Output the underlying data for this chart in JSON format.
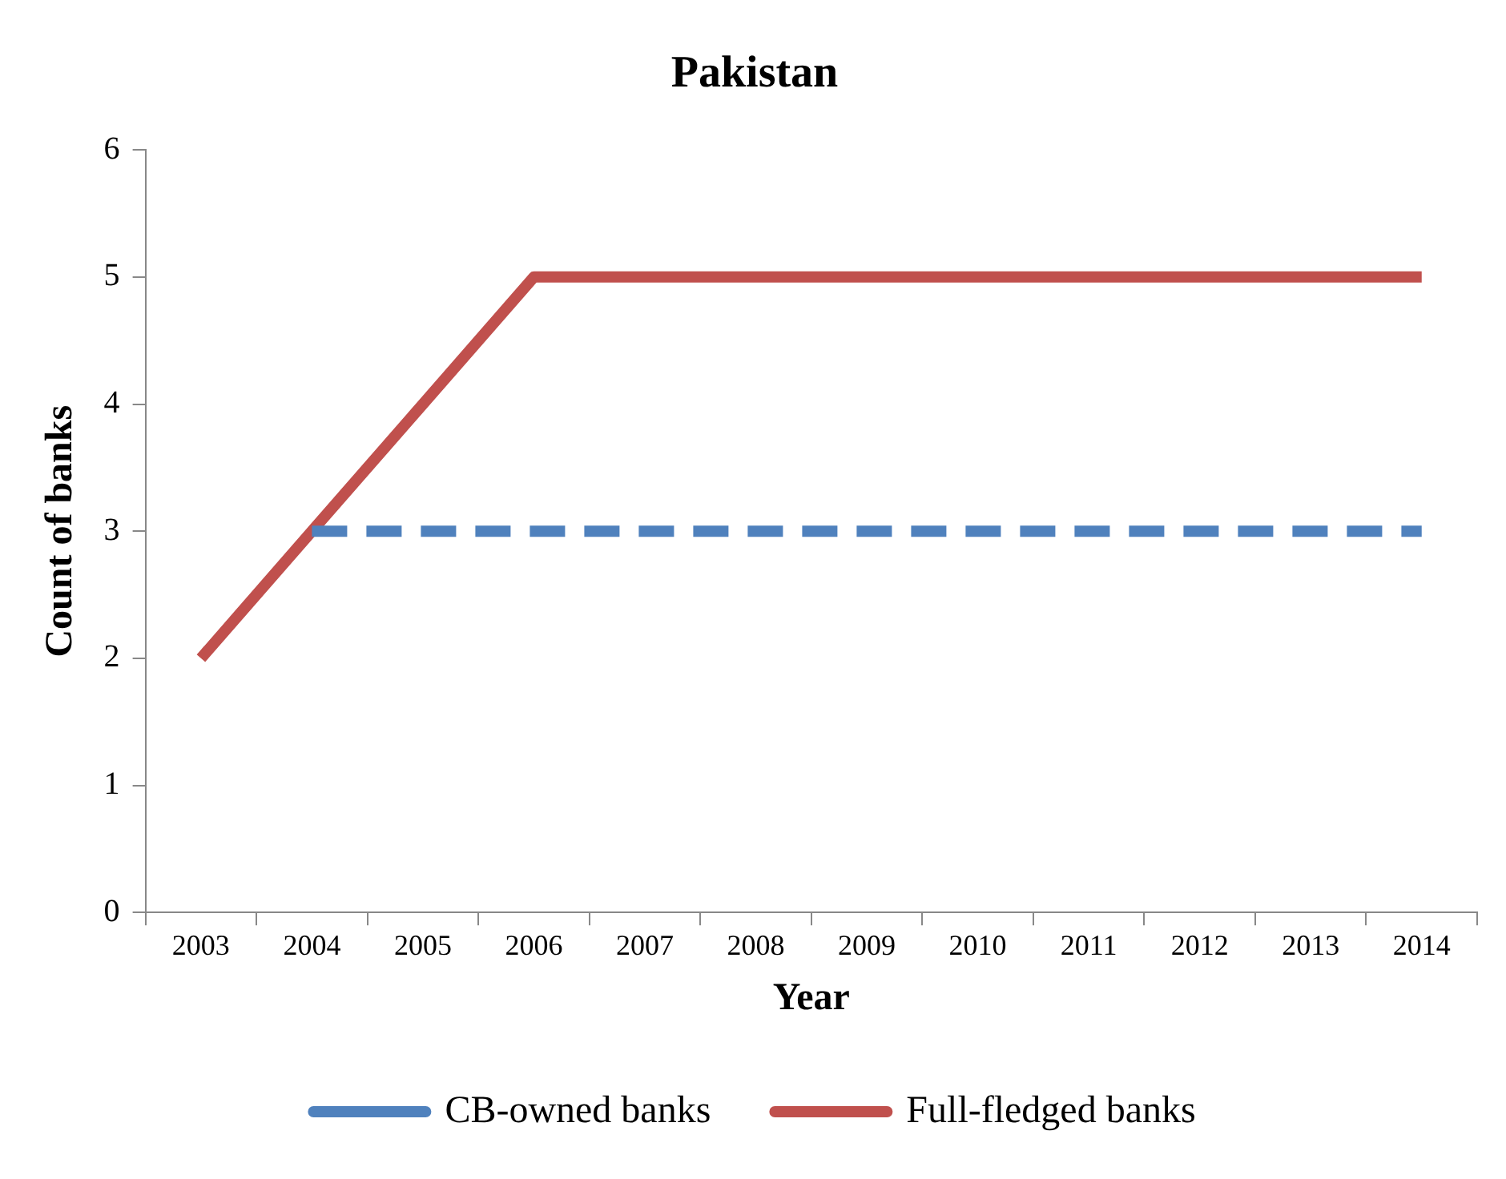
{
  "chart_data": {
    "type": "line",
    "title": "Pakistan",
    "xlabel": "Year",
    "ylabel": "Count of banks",
    "categories": [
      "2003",
      "2004",
      "2005",
      "2006",
      "2007",
      "2008",
      "2009",
      "2010",
      "2011",
      "2012",
      "2013",
      "2014"
    ],
    "series": [
      {
        "name": "CB-owned banks",
        "color": "#4f81bd",
        "line_style": "dashed",
        "values": [
          null,
          3,
          3,
          3,
          3,
          3,
          3,
          3,
          3,
          3,
          3,
          3
        ]
      },
      {
        "name": "Full-fledged banks",
        "color": "#c0504d",
        "line_style": "solid",
        "values": [
          2,
          3,
          4,
          5,
          5,
          5,
          5,
          5,
          5,
          5,
          5,
          5
        ]
      }
    ],
    "ylim": [
      0,
      6
    ],
    "yticks": [
      0,
      1,
      2,
      3,
      4,
      5,
      6
    ],
    "grid": false,
    "legend": "bottom",
    "marker": "none"
  }
}
